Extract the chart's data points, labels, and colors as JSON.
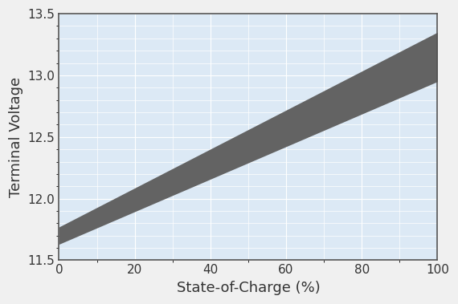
{
  "x": [
    0,
    100
  ],
  "lower_bound": [
    11.63,
    12.95
  ],
  "upper_bound": [
    11.77,
    13.35
  ],
  "band_color": "#636363",
  "band_alpha": 1.0,
  "bg_color": "#ddeeff",
  "plot_bg_color": "#dce9f5",
  "xlabel": "State-of-Charge (%)",
  "ylabel": "Terminal Voltage",
  "xlim": [
    0,
    100
  ],
  "ylim": [
    11.5,
    13.5
  ],
  "xticks": [
    0,
    20,
    40,
    60,
    80,
    100
  ],
  "yticks": [
    11.5,
    12.0,
    12.5,
    13.0,
    13.5
  ],
  "grid_color": "#ffffff",
  "grid_linewidth": 0.8,
  "tick_fontsize": 11,
  "label_fontsize": 13,
  "figure_bg_color": "#f0f0f0",
  "spine_color": "#555555"
}
